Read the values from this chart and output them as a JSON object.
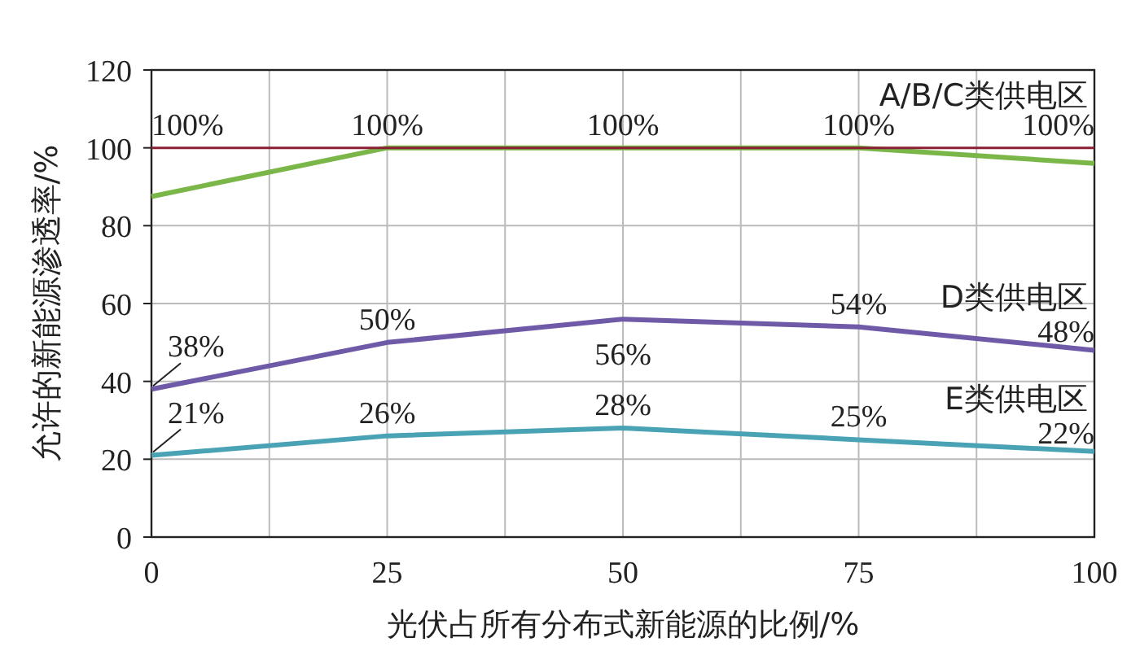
{
  "chart_data": {
    "type": "line",
    "xlabel": "光伏占所有分布式新能源的比例/%",
    "ylabel": "允许的新能源渗透率/%",
    "x": [
      0,
      25,
      50,
      75,
      100
    ],
    "series": [
      {
        "name": "A/B/C类供电区",
        "color": "#8b2035",
        "values": [
          100,
          100,
          100,
          100,
          100
        ],
        "value_labels": [
          "100%",
          "100%",
          "100%",
          "100%",
          "100%"
        ]
      },
      {
        "color": "#7ab648",
        "values": [
          87.5,
          100,
          100,
          100,
          96
        ]
      },
      {
        "name": "D类供电区",
        "color": "#6f5aa8",
        "values": [
          38,
          50,
          56,
          54,
          48
        ],
        "value_labels": [
          "38%",
          "50%",
          "56%",
          "54%",
          "48%"
        ]
      },
      {
        "name": "E类供电区",
        "color": "#4aa3b5",
        "values": [
          21,
          26,
          28,
          25,
          22
        ],
        "value_labels": [
          "21%",
          "26%",
          "28%",
          "25%",
          "22%"
        ]
      }
    ],
    "xlim": [
      0,
      100
    ],
    "xticks": [
      0,
      {
        "value": 12.5,
        "label": null
      },
      25,
      {
        "value": 37.5,
        "label": null
      },
      50,
      {
        "value": 62.5,
        "label": null
      },
      75,
      {
        "value": 87.5,
        "label": null
      },
      100
    ],
    "ylim": [
      0,
      120
    ],
    "yticks": [
      0,
      20,
      40,
      60,
      80,
      100,
      120
    ],
    "grid": true,
    "marker": "none",
    "line_style": "solid"
  }
}
